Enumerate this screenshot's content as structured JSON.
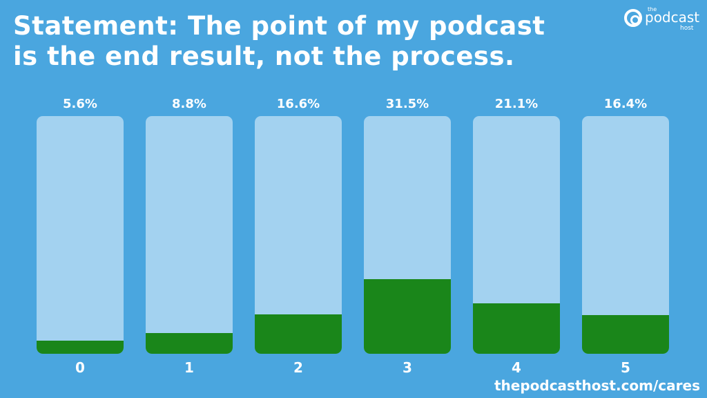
{
  "header": {
    "title_line1": "Statement: The point of my podcast",
    "title_line2": "is the end result, not the process."
  },
  "logo": {
    "the": "the",
    "podcast": "podcast",
    "host": "host"
  },
  "footer": {
    "url": "thepodcasthost.com/cares"
  },
  "colors": {
    "background": "#4aa6df",
    "bar_track": "#a3d2f0",
    "bar_fill": "#1a861a",
    "text": "#ffffff"
  },
  "bars": [
    {
      "label": "0",
      "value_label": "5.6%"
    },
    {
      "label": "1",
      "value_label": "8.8%"
    },
    {
      "label": "2",
      "value_label": "16.6%"
    },
    {
      "label": "3",
      "value_label": "31.5%"
    },
    {
      "label": "4",
      "value_label": "21.1%"
    },
    {
      "label": "5",
      "value_label": "16.4%"
    }
  ],
  "chart_data": {
    "type": "bar",
    "title": "Statement: The point of my podcast is the end result, not the process.",
    "categories": [
      "0",
      "1",
      "2",
      "3",
      "4",
      "5"
    ],
    "values": [
      5.6,
      8.8,
      16.6,
      31.5,
      21.1,
      16.4
    ],
    "xlabel": "",
    "ylabel": "",
    "ylim": [
      0,
      100
    ],
    "unit": "%",
    "grid": false,
    "legend": null
  }
}
